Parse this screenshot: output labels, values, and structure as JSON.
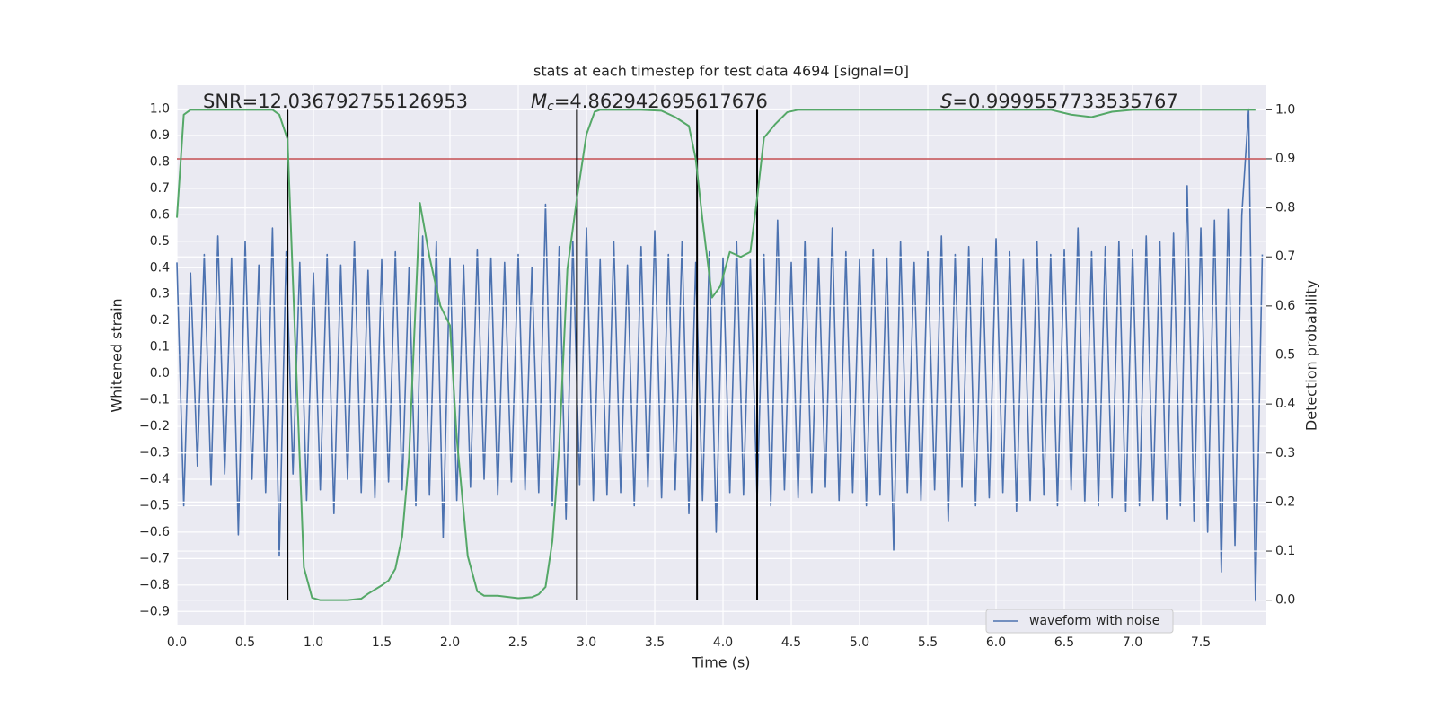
{
  "chart_data": {
    "type": "line",
    "title": "stats at each timestep for test data 4694 [signal=0]",
    "x_label": "Time (s)",
    "y_label": "Whitened strain",
    "y2_label": "Detection probability",
    "annotations": [
      {
        "text": "SNR=12.036792755126953"
      },
      {
        "symbol": "M",
        "subscript": "c",
        "text": "=4.862942695617676"
      },
      {
        "symbol": "S",
        "text": "=0.9999557733535767"
      }
    ],
    "xlim": [
      0,
      7.98
    ],
    "ylim": [
      -0.95,
      1.09
    ],
    "y2lim": [
      -0.05,
      1.05
    ],
    "grid": true,
    "xticks": [
      {
        "value": 0,
        "label": "0.0"
      },
      0.5,
      {
        "value": 1,
        "label": "1.0"
      },
      1.5,
      {
        "value": 2,
        "label": "2.0"
      },
      2.5,
      {
        "value": 3,
        "label": "3.0"
      },
      3.5,
      {
        "value": 4,
        "label": "4.0"
      },
      4.5,
      {
        "value": 5,
        "label": "5.0"
      },
      5.5,
      {
        "value": 6,
        "label": "6.0"
      },
      6.5,
      {
        "value": 7,
        "label": "7.0"
      },
      7.5
    ],
    "yticks": [
      {
        "value": 1,
        "label": "1.0"
      },
      0.9,
      0.8,
      0.7,
      0.6,
      0.5,
      0.4,
      0.3,
      0.2,
      0.1,
      {
        "value": 0,
        "label": "0.0"
      },
      {
        "value": -0.1,
        "label": "−0.1"
      },
      {
        "value": -0.2,
        "label": "−0.2"
      },
      {
        "value": -0.3,
        "label": "−0.3"
      },
      {
        "value": -0.4,
        "label": "−0.4"
      },
      {
        "value": -0.5,
        "label": "−0.5"
      },
      {
        "value": -0.6,
        "label": "−0.6"
      },
      {
        "value": -0.7,
        "label": "−0.7"
      },
      {
        "value": -0.8,
        "label": "−0.8"
      },
      {
        "value": -0.9,
        "label": "−0.9"
      }
    ],
    "y2ticks": [
      {
        "value": 0,
        "label": "0.0"
      },
      0.1,
      0.2,
      0.3,
      0.4,
      0.5,
      0.6,
      0.7,
      0.8,
      0.9,
      {
        "value": 1,
        "label": "1.0"
      }
    ],
    "threshold": {
      "value": 0.9,
      "axis": "y2",
      "color": "#c44e52"
    },
    "vlines": [
      0.81,
      2.93,
      3.81,
      4.25
    ],
    "vline_color": "#000000",
    "series": [
      {
        "name": "waveform with noise",
        "color": "#4c72b0",
        "x": [
          0,
          0.05,
          0.1,
          0.15,
          0.2,
          0.25,
          0.3,
          0.35,
          0.4,
          0.45,
          0.5,
          0.55,
          0.6,
          0.65,
          0.7,
          0.75,
          0.8,
          0.85,
          0.9,
          0.95,
          1,
          1.05,
          1.1,
          1.15,
          1.2,
          1.25,
          1.3,
          1.35,
          1.4,
          1.45,
          1.5,
          1.55,
          1.6,
          1.65,
          1.7,
          1.75,
          1.8,
          1.85,
          1.9,
          1.95,
          2,
          2.05,
          2.1,
          2.15,
          2.2,
          2.25,
          2.3,
          2.35,
          2.4,
          2.45,
          2.5,
          2.55,
          2.6,
          2.65,
          2.7,
          2.75,
          2.8,
          2.85,
          2.9,
          2.95,
          3,
          3.05,
          3.1,
          3.15,
          3.2,
          3.25,
          3.3,
          3.35,
          3.4,
          3.45,
          3.5,
          3.55,
          3.6,
          3.65,
          3.7,
          3.75,
          3.8,
          3.85,
          3.9,
          3.95,
          4,
          4.05,
          4.1,
          4.15,
          4.2,
          4.25,
          4.3,
          4.35,
          4.4,
          4.45,
          4.5,
          4.55,
          4.6,
          4.65,
          4.7,
          4.75,
          4.8,
          4.85,
          4.9,
          4.95,
          5,
          5.05,
          5.1,
          5.15,
          5.2,
          5.25,
          5.3,
          5.35,
          5.4,
          5.45,
          5.5,
          5.55,
          5.6,
          5.65,
          5.7,
          5.75,
          5.8,
          5.85,
          5.9,
          5.95,
          6,
          6.05,
          6.1,
          6.15,
          6.2,
          6.25,
          6.3,
          6.35,
          6.4,
          6.45,
          6.5,
          6.55,
          6.6,
          6.65,
          6.7,
          6.75,
          6.8,
          6.85,
          6.9,
          6.95,
          7,
          7.05,
          7.1,
          7.15,
          7.2,
          7.25,
          7.3,
          7.35,
          7.4,
          7.45,
          7.5,
          7.55,
          7.6,
          7.65,
          7.7,
          7.75,
          7.8,
          7.85,
          7.9,
          7.95
        ],
        "values": [
          0.42,
          -0.5,
          0.38,
          -0.35,
          0.45,
          -0.42,
          0.52,
          -0.38,
          0.44,
          -0.61,
          0.5,
          -0.4,
          0.41,
          -0.45,
          0.55,
          -0.69,
          0.46,
          -0.38,
          0.42,
          -0.48,
          0.38,
          -0.44,
          0.45,
          -0.53,
          0.41,
          -0.4,
          0.5,
          -0.45,
          0.39,
          -0.47,
          0.43,
          -0.41,
          0.46,
          -0.44,
          0.4,
          -0.5,
          0.52,
          -0.46,
          0.5,
          -0.62,
          0.44,
          -0.48,
          0.41,
          -0.43,
          0.47,
          -0.4,
          0.44,
          -0.46,
          0.42,
          -0.41,
          0.45,
          -0.44,
          0.4,
          -0.45,
          0.64,
          -0.5,
          0.48,
          -0.55,
          0.5,
          -0.42,
          0.55,
          -0.48,
          0.43,
          -0.46,
          0.5,
          -0.45,
          0.41,
          -0.5,
          0.48,
          -0.43,
          0.54,
          -0.47,
          0.45,
          -0.44,
          0.5,
          -0.53,
          0.42,
          -0.48,
          0.46,
          -0.6,
          0.44,
          -0.45,
          0.5,
          -0.46,
          0.43,
          -0.48,
          0.45,
          -0.5,
          0.58,
          -0.44,
          0.42,
          -0.47,
          0.5,
          -0.45,
          0.44,
          -0.43,
          0.55,
          -0.48,
          0.46,
          -0.45,
          0.43,
          -0.5,
          0.47,
          -0.46,
          0.44,
          -0.67,
          0.5,
          -0.45,
          0.42,
          -0.48,
          0.46,
          -0.44,
          0.52,
          -0.56,
          0.45,
          -0.43,
          0.48,
          -0.5,
          0.44,
          -0.47,
          0.51,
          -0.45,
          0.46,
          -0.52,
          0.43,
          -0.48,
          0.5,
          -0.46,
          0.45,
          -0.5,
          0.47,
          -0.44,
          0.55,
          -0.49,
          0.46,
          -0.5,
          0.48,
          -0.47,
          0.5,
          -0.52,
          0.47,
          -0.5,
          0.52,
          -0.48,
          0.5,
          -0.55,
          0.53,
          -0.5,
          0.71,
          -0.56,
          0.55,
          -0.6,
          0.58,
          -0.75,
          0.62,
          -0.65,
          0.6,
          1.0,
          -0.86,
          0.45
        ]
      },
      {
        "color": "#55a868",
        "axis": "y2",
        "x": [
          0,
          0.05,
          0.1,
          0.2,
          0.3,
          0.4,
          0.5,
          0.6,
          0.7,
          0.75,
          0.81,
          0.93,
          0.99,
          1.05,
          1.15,
          1.25,
          1.35,
          1.4,
          1.5,
          1.55,
          1.6,
          1.65,
          1.7,
          1.78,
          1.85,
          1.93,
          2.0,
          2.05,
          2.13,
          2.2,
          2.25,
          2.35,
          2.5,
          2.6,
          2.65,
          2.7,
          2.75,
          2.8,
          2.86,
          2.93,
          3.0,
          3.06,
          3.1,
          3.2,
          3.3,
          3.4,
          3.55,
          3.65,
          3.75,
          3.8,
          3.85,
          3.92,
          3.98,
          4.05,
          4.13,
          4.2,
          4.25,
          4.3,
          4.38,
          4.47,
          4.55,
          4.7,
          5.0,
          5.5,
          6.0,
          6.4,
          6.55,
          6.7,
          6.85,
          7.0,
          7.5,
          7.9
        ],
        "values": [
          0.78,
          0.99,
          1.0,
          1.0,
          1.0,
          1.0,
          1.0,
          1.0,
          1.0,
          0.99,
          0.94,
          0.067,
          0.005,
          0.0,
          0.0,
          0.0,
          0.003,
          0.013,
          0.03,
          0.04,
          0.064,
          0.13,
          0.29,
          0.81,
          0.7,
          0.6,
          0.56,
          0.33,
          0.09,
          0.018,
          0.009,
          0.009,
          0.004,
          0.006,
          0.012,
          0.027,
          0.12,
          0.31,
          0.675,
          0.82,
          0.95,
          0.996,
          1.0,
          1.0,
          1.0,
          1.0,
          0.998,
          0.985,
          0.967,
          0.9,
          0.775,
          0.617,
          0.64,
          0.71,
          0.7,
          0.71,
          0.82,
          0.943,
          0.97,
          0.995,
          1.0,
          1.0,
          1.0,
          1.0,
          1.0,
          1.0,
          0.99,
          0.985,
          0.996,
          1.0,
          1.0,
          1.0
        ]
      }
    ]
  }
}
